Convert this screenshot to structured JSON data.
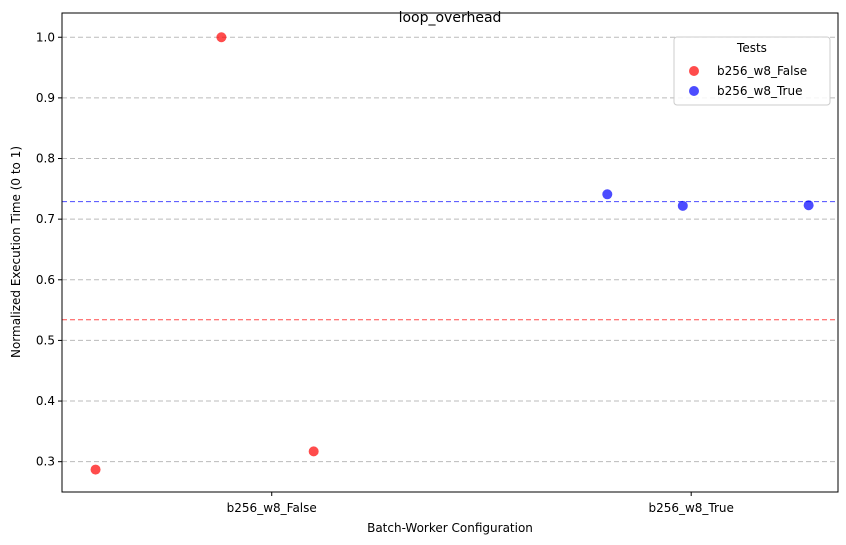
{
  "chart_data": {
    "type": "scatter",
    "title": "loop_overhead",
    "xlabel": "Batch-Worker Configuration",
    "ylabel": "Normalized Execution Time (0 to 1)",
    "categories": [
      "b256_w8_False",
      "b256_w8_True"
    ],
    "ylim": [
      0.25,
      1.04
    ],
    "yticks": [
      "0.3",
      "0.4",
      "0.5",
      "0.6",
      "0.7",
      "0.8",
      "0.9",
      "1.0"
    ],
    "grid": "y-dashed",
    "legend": {
      "title": "Tests",
      "position": "top-right"
    },
    "series": [
      {
        "name": "b256_w8_False",
        "color": "#ff0000",
        "points": [
          {
            "x": -0.42,
            "y": 0.287
          },
          {
            "x": -0.12,
            "y": 1.0
          },
          {
            "x": 0.1,
            "y": 0.317
          }
        ],
        "mean": 0.534
      },
      {
        "name": "b256_w8_True",
        "color": "#0000ff",
        "points": [
          {
            "x": 0.8,
            "y": 0.741
          },
          {
            "x": 0.98,
            "y": 0.722
          },
          {
            "x": 1.28,
            "y": 0.723
          }
        ],
        "mean": 0.729
      }
    ]
  }
}
